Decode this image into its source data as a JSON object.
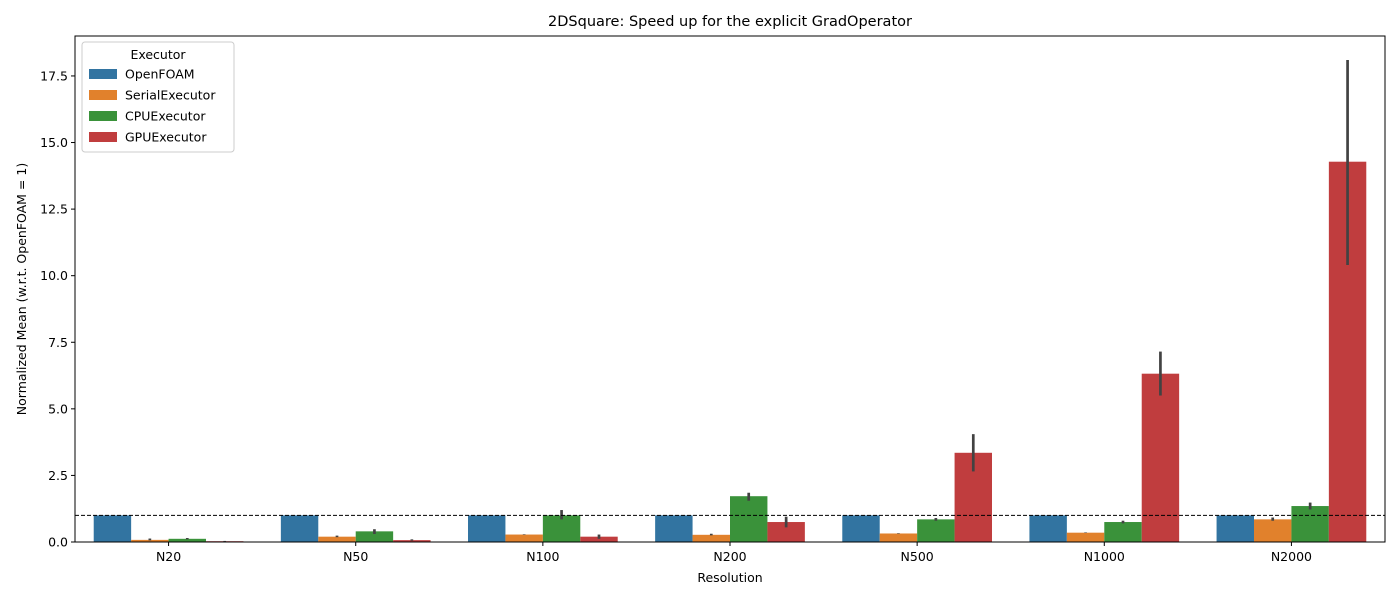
{
  "chart_data": {
    "type": "bar",
    "title": "2DSquare: Speed up for the explicit GradOperator",
    "xlabel": "Resolution",
    "ylabel": "Normalized Mean (w.r.t. OpenFOAM = 1)",
    "categories": [
      "N20",
      "N50",
      "N100",
      "N200",
      "N500",
      "N1000",
      "N2000"
    ],
    "ylim": [
      0,
      19.0
    ],
    "yticks": [
      "0.0",
      "2.5",
      "5.0",
      "7.5",
      "10.0",
      "12.5",
      "15.0",
      "17.5"
    ],
    "reference_line": 1.0,
    "legend": {
      "title": "Executor",
      "placement": "top-left"
    },
    "series": [
      {
        "name": "OpenFOAM",
        "color": "#3274a1",
        "values": [
          1.0,
          1.0,
          1.0,
          1.0,
          1.0,
          1.0,
          1.0
        ],
        "err_low": [
          1.0,
          1.0,
          1.0,
          1.0,
          1.0,
          1.0,
          1.0
        ],
        "err_high": [
          1.0,
          1.0,
          1.0,
          1.0,
          1.0,
          1.0,
          1.0
        ]
      },
      {
        "name": "SerialExecutor",
        "color": "#e1812c",
        "values": [
          0.08,
          0.2,
          0.28,
          0.27,
          0.32,
          0.35,
          0.85
        ],
        "err_low": [
          0.06,
          0.18,
          0.27,
          0.25,
          0.31,
          0.34,
          0.8
        ],
        "err_high": [
          0.13,
          0.24,
          0.29,
          0.31,
          0.33,
          0.36,
          0.92
        ]
      },
      {
        "name": "CPUExecutor",
        "color": "#3a923a",
        "values": [
          0.12,
          0.4,
          1.0,
          1.72,
          0.85,
          0.75,
          1.35
        ],
        "err_low": [
          0.1,
          0.3,
          0.85,
          1.55,
          0.8,
          0.7,
          1.22
        ],
        "err_high": [
          0.15,
          0.48,
          1.2,
          1.85,
          0.9,
          0.8,
          1.48
        ]
      },
      {
        "name": "GPUExecutor",
        "color": "#c03d3e",
        "values": [
          0.03,
          0.07,
          0.2,
          0.75,
          3.35,
          6.32,
          14.28
        ],
        "err_low": [
          0.02,
          0.05,
          0.12,
          0.55,
          2.65,
          5.5,
          10.4
        ],
        "err_high": [
          0.04,
          0.1,
          0.28,
          0.95,
          4.05,
          7.15,
          18.1
        ]
      }
    ]
  }
}
